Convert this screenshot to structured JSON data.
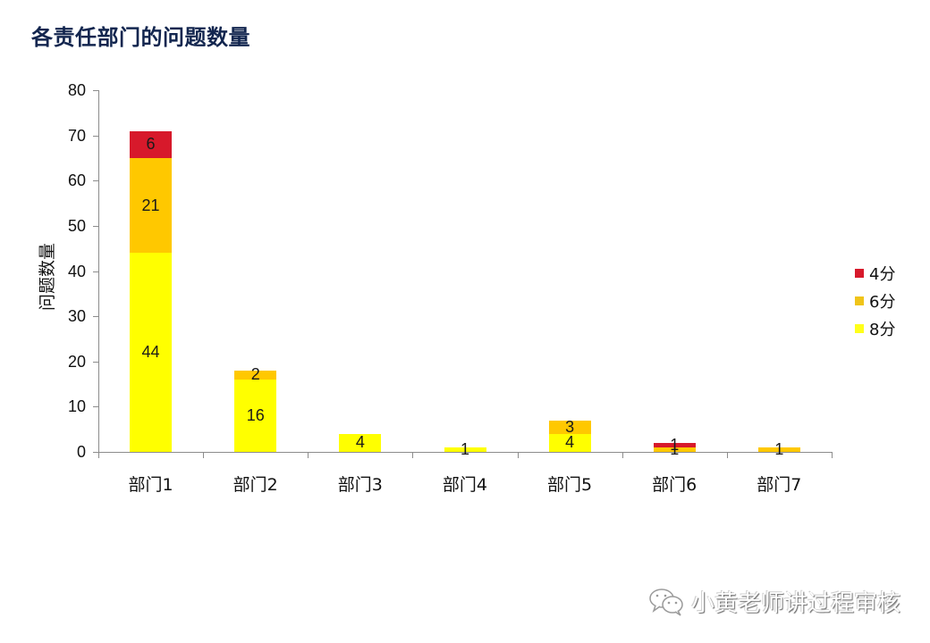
{
  "title": "各责任部门的问题数量",
  "chart_data": {
    "type": "bar",
    "stacked": true,
    "title": "各责任部门的问题数量",
    "xlabel": "",
    "ylabel": "问题数量",
    "ylim": [
      0,
      80
    ],
    "yticks": [
      0,
      10,
      20,
      30,
      40,
      50,
      60,
      70,
      80
    ],
    "grid": false,
    "legend_position": "right",
    "categories": [
      "部门1",
      "部门2",
      "部门3",
      "部门4",
      "部门5",
      "部门6",
      "部门7"
    ],
    "series": [
      {
        "name": "8分",
        "color": "#ffff00",
        "values": [
          44,
          16,
          4,
          1,
          4,
          0,
          0
        ]
      },
      {
        "name": "6分",
        "color": "#ffc800",
        "values": [
          21,
          2,
          0,
          0,
          3,
          1,
          1
        ]
      },
      {
        "name": "4分",
        "color": "#d7192b",
        "values": [
          6,
          0,
          0,
          0,
          0,
          1,
          0
        ]
      }
    ],
    "data_labels": true
  },
  "legend": [
    {
      "label": "4分",
      "color": "#d7192b"
    },
    {
      "label": "6分",
      "color": "#f0c419"
    },
    {
      "label": "8分",
      "color": "#ffff1a"
    }
  ],
  "watermark": {
    "text": "小黄老师讲过程审核",
    "icon": "wechat-icon"
  }
}
